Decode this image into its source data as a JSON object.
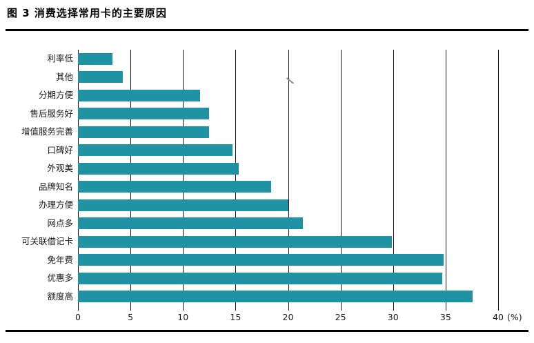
{
  "page": {
    "title": "图 3 消费选择常用卡的主要原因"
  },
  "chart_data": {
    "type": "bar",
    "orientation": "horizontal",
    "title": "图 3 消费选择常用卡的主要原因",
    "order": "top-to-bottom",
    "categories": [
      "利率低",
      "其他",
      "分期方便",
      "售后服务好",
      "增值服务完善",
      "口碑好",
      "外观美",
      "品牌知名",
      "办理方便",
      "网点多",
      "可关联借记卡",
      "免年费",
      "优惠多",
      "额度高"
    ],
    "values": [
      3.3,
      4.3,
      11.6,
      12.5,
      12.5,
      14.7,
      15.3,
      18.4,
      20.0,
      21.4,
      29.9,
      34.8,
      34.7,
      37.6
    ],
    "xlabel": "(%)",
    "ylabel": "",
    "xlim": [
      0,
      40
    ],
    "xticks": [
      0,
      5,
      10,
      15,
      20,
      25,
      30,
      35,
      40
    ],
    "xtick_labels": [
      "0",
      "5",
      "10",
      "15",
      "20",
      "25",
      "30",
      "35",
      "40"
    ],
    "grid": true,
    "legend": false,
    "bar_color": "#1f93a4",
    "gridline_color": "#111111",
    "text_color": "#1a1a1a"
  }
}
